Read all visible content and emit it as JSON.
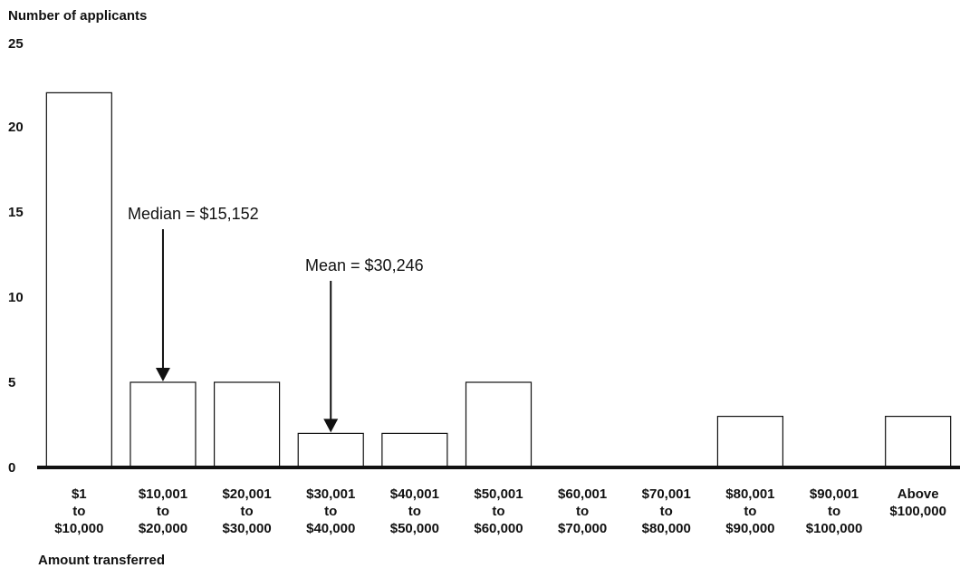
{
  "chart_data": {
    "type": "bar",
    "title": "",
    "ylabel": "Number of applicants",
    "xlabel": "Amount transferred",
    "ylim": [
      0,
      25
    ],
    "yticks": [
      "0",
      "5",
      "10",
      "15",
      "20",
      "25"
    ],
    "categories": [
      [
        "$1",
        "to",
        "$10,000"
      ],
      [
        "$10,001",
        "to",
        "$20,000"
      ],
      [
        "$20,001",
        "to",
        "$30,000"
      ],
      [
        "$30,001",
        "to",
        "$40,000"
      ],
      [
        "$40,001",
        "to",
        "$50,000"
      ],
      [
        "$50,001",
        "to",
        "$60,000"
      ],
      [
        "$60,001",
        "to",
        "$70,000"
      ],
      [
        "$70,001",
        "to",
        "$80,000"
      ],
      [
        "$80,001",
        "to",
        "$90,000"
      ],
      [
        "$90,001",
        "to",
        "$100,000"
      ],
      [
        "Above",
        "$100,000"
      ]
    ],
    "values": [
      22,
      5,
      5,
      2,
      2,
      5,
      0,
      0,
      3,
      0,
      3
    ],
    "annotations": [
      {
        "text": "Median = $15,152",
        "category_index": 1
      },
      {
        "text": "Mean = $30,246",
        "category_index": 3
      }
    ],
    "grid": false
  }
}
